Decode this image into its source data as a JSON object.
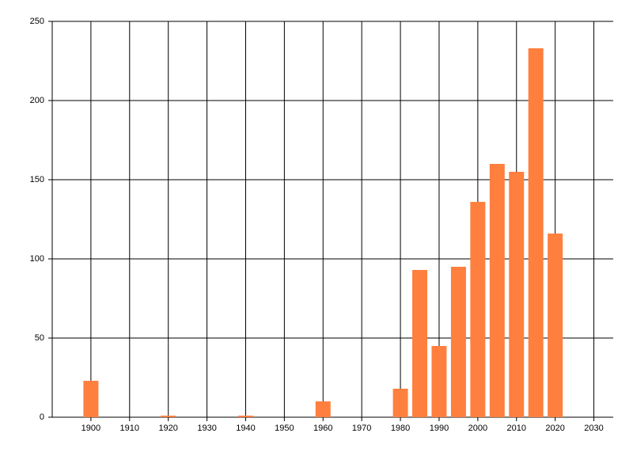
{
  "chart_data": {
    "type": "bar",
    "x": [
      1900,
      1920,
      1940,
      1960,
      1980,
      1985,
      1990,
      1995,
      2000,
      2005,
      2010,
      2015,
      2020
    ],
    "values": [
      23,
      1,
      1,
      10,
      18,
      93,
      45,
      95,
      136,
      160,
      155,
      233,
      116
    ],
    "color": "#ff7f3f",
    "xlim": [
      1890,
      2035
    ],
    "xticks": [
      1900,
      1910,
      1920,
      1930,
      1940,
      1950,
      1960,
      1970,
      1980,
      1990,
      2000,
      2010,
      2020,
      2030
    ],
    "ylim": [
      0,
      250
    ],
    "yticks": [
      0,
      50,
      100,
      150,
      200,
      250
    ],
    "grid": true
  }
}
